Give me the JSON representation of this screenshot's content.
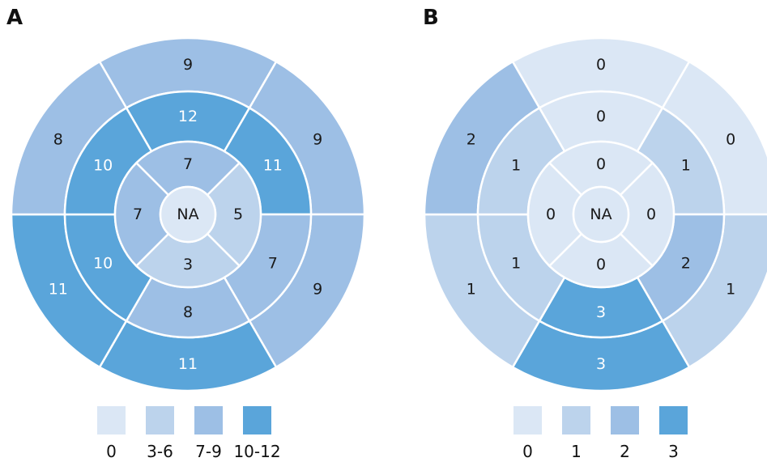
{
  "colors": {
    "c0": "#dbe7f5",
    "c1": "#bcd3ec",
    "c2": "#9dbfe5",
    "c3": "#5aa5da",
    "text_dark": "#1a1a1a",
    "text_light": "#ffffff",
    "border": "#ffffff"
  },
  "panels": [
    {
      "label": "A",
      "center": {
        "text": "NA",
        "level": 0
      },
      "apical": [
        {
          "text": "7",
          "level": 2
        },
        {
          "text": "5",
          "level": 1
        },
        {
          "text": "3",
          "level": 1
        },
        {
          "text": "7",
          "level": 2
        }
      ],
      "mid": [
        {
          "text": "12",
          "level": 3
        },
        {
          "text": "11",
          "level": 3
        },
        {
          "text": "7",
          "level": 2
        },
        {
          "text": "8",
          "level": 2
        },
        {
          "text": "10",
          "level": 3
        },
        {
          "text": "10",
          "level": 3
        }
      ],
      "basal": [
        {
          "text": "9",
          "level": 2
        },
        {
          "text": "9",
          "level": 2
        },
        {
          "text": "9",
          "level": 2
        },
        {
          "text": "11",
          "level": 3
        },
        {
          "text": "11",
          "level": 3
        },
        {
          "text": "8",
          "level": 2
        }
      ],
      "legend": [
        {
          "text": "0",
          "level": 0
        },
        {
          "text": "3-6",
          "level": 1
        },
        {
          "text": "7-9",
          "level": 2
        },
        {
          "text": "10-12",
          "level": 3
        }
      ]
    },
    {
      "label": "B",
      "center": {
        "text": "NA",
        "level": 0
      },
      "apical": [
        {
          "text": "0",
          "level": 0
        },
        {
          "text": "0",
          "level": 0
        },
        {
          "text": "0",
          "level": 0
        },
        {
          "text": "0",
          "level": 0
        }
      ],
      "mid": [
        {
          "text": "0",
          "level": 0
        },
        {
          "text": "1",
          "level": 1
        },
        {
          "text": "2",
          "level": 2
        },
        {
          "text": "3",
          "level": 3
        },
        {
          "text": "1",
          "level": 1
        },
        {
          "text": "1",
          "level": 1
        }
      ],
      "basal": [
        {
          "text": "0",
          "level": 0
        },
        {
          "text": "0",
          "level": 0
        },
        {
          "text": "1",
          "level": 1
        },
        {
          "text": "3",
          "level": 3
        },
        {
          "text": "1",
          "level": 1
        },
        {
          "text": "2",
          "level": 2
        }
      ],
      "legend": [
        {
          "text": "0",
          "level": 0
        },
        {
          "text": "1",
          "level": 1
        },
        {
          "text": "2",
          "level": 2
        },
        {
          "text": "3",
          "level": 3
        }
      ]
    }
  ]
}
